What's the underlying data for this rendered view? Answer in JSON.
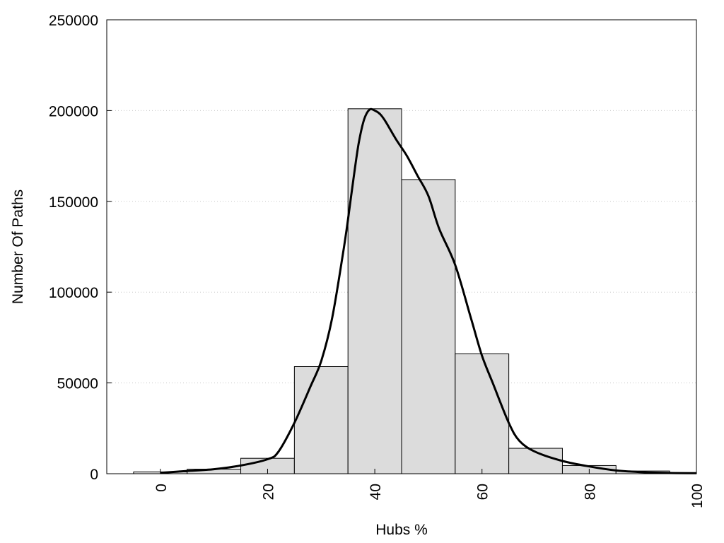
{
  "chart_data": {
    "type": "bar",
    "title": "",
    "xlabel": "Hubs %",
    "ylabel": "Number Of Paths",
    "xlim": [
      -10,
      100
    ],
    "ylim": [
      0,
      250000
    ],
    "x_ticks": [
      0,
      20,
      40,
      60,
      80,
      100
    ],
    "y_ticks": [
      0,
      50000,
      100000,
      150000,
      200000,
      250000
    ],
    "grid": "horizontal-dotted",
    "bar_color": "#dcdcdc",
    "bars": [
      {
        "x0": -5,
        "x1": 5,
        "value": 1000
      },
      {
        "x0": 5,
        "x1": 15,
        "value": 2500
      },
      {
        "x0": 15,
        "x1": 25,
        "value": 8500
      },
      {
        "x0": 25,
        "x1": 35,
        "value": 59000
      },
      {
        "x0": 35,
        "x1": 45,
        "value": 201000
      },
      {
        "x0": 45,
        "x1": 55,
        "value": 162000
      },
      {
        "x0": 55,
        "x1": 65,
        "value": 66000
      },
      {
        "x0": 65,
        "x1": 75,
        "value": 14000
      },
      {
        "x0": 75,
        "x1": 85,
        "value": 4500
      },
      {
        "x0": 85,
        "x1": 95,
        "value": 1500
      }
    ],
    "curve": {
      "x": [
        0,
        5,
        10,
        15,
        20,
        22,
        25,
        28,
        30,
        32,
        34,
        35,
        36,
        37,
        38,
        39,
        40,
        41,
        42,
        44,
        46,
        48,
        50,
        52,
        55,
        58,
        60,
        62,
        65,
        67,
        70,
        75,
        80,
        85,
        90,
        95,
        100
      ],
      "y": [
        500,
        1500,
        2500,
        4500,
        8000,
        12000,
        28000,
        48000,
        62000,
        85000,
        120000,
        140000,
        162000,
        182000,
        195000,
        200500,
        200000,
        198000,
        194000,
        184000,
        175000,
        164000,
        153000,
        135000,
        115000,
        85000,
        65000,
        50000,
        28000,
        18000,
        12000,
        7000,
        4000,
        1800,
        800,
        400,
        300
      ]
    }
  }
}
